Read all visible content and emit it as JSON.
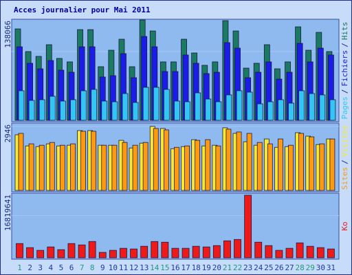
{
  "chart_data": [
    {
      "type": "bar",
      "title": "Acces journalier pour Mai 2011",
      "barmode": "overlay",
      "legend_separator": "/",
      "ylim": [
        0,
        203000
      ],
      "yticks": [
        138066
      ],
      "grid": true,
      "series": [
        {
          "name": "Pages",
          "color": "#33c6f4",
          "values": [
            59400,
            40000,
            41400,
            48300,
            38700,
            41400,
            59400,
            62100,
            38700,
            37300,
            53800,
            35900,
            66300,
            66300,
            62100,
            38700,
            37300,
            55200,
            42800,
            37300,
            51100,
            59400,
            56600,
            33100,
            37300,
            41400,
            34500,
            59400,
            53800,
            51100,
            41400
          ]
        },
        {
          "name": "Fichiers",
          "color": "#1c1ce8",
          "values": [
            147700,
            114600,
            103500,
            120100,
            100800,
            96600,
            147700,
            147700,
            87000,
            89700,
            133900,
            85600,
            168400,
            147700,
            98000,
            98000,
            131200,
            114600,
            93900,
            96600,
            156000,
            145000,
            85600,
            96600,
            117400,
            82800,
            96600,
            154600,
            117400,
            145000,
            131200
          ]
        },
        {
          "name": "Hits",
          "color": "#1b7a62",
          "values": [
            183600,
            138100,
            128400,
            151900,
            124300,
            117400,
            182200,
            182200,
            107700,
            140800,
            162900,
            107700,
            201600,
            179500,
            117400,
            117400,
            162900,
            135300,
            110500,
            117400,
            200200,
            179500,
            104900,
            114600,
            151900,
            103500,
            117400,
            187800,
            140800,
            176700,
            138100
          ]
        }
      ]
    },
    {
      "type": "bar",
      "barmode": "group",
      "legend_separator": "/",
      "ylim": [
        0,
        3100
      ],
      "yticks": [
        2946
      ],
      "grid": true,
      "series": [
        {
          "name": "Sites",
          "color": "#ff9a10",
          "values": [
            2626,
            2145,
            2081,
            2209,
            2081,
            2145,
            2722,
            2722,
            2081,
            2081,
            2209,
            2081,
            2209,
            2850,
            2786,
            1985,
            2049,
            2305,
            2337,
            2049,
            2818,
            2690,
            2626,
            2209,
            2145,
            2369,
            2081,
            2626,
            2466,
            2145,
            2369
          ]
        },
        {
          "name": "Visites",
          "color": "#f8e830",
          "values": [
            2562,
            2049,
            2017,
            2145,
            2049,
            2081,
            2754,
            2754,
            2081,
            2081,
            2305,
            1953,
            2177,
            2946,
            2850,
            1921,
            2017,
            2337,
            2049,
            2081,
            2882,
            2626,
            2241,
            2081,
            2369,
            1985,
            2017,
            2658,
            2498,
            2113,
            2369
          ]
        }
      ]
    },
    {
      "type": "bar",
      "barmode": "overlay",
      "ylim": [
        0,
        25772000
      ],
      "yticks": [
        16819641
      ],
      "grid": true,
      "categories": [
        "1",
        "2",
        "3",
        "4",
        "5",
        "6",
        "7",
        "8",
        "9",
        "10",
        "11",
        "12",
        "13",
        "14",
        "15",
        "16",
        "17",
        "18",
        "19",
        "20",
        "21",
        "22",
        "23",
        "24",
        "25",
        "26",
        "27",
        "28",
        "29",
        "30",
        "31"
      ],
      "highlight_categories": [
        "1",
        "7",
        "8",
        "14",
        "15",
        "21",
        "22",
        "28",
        "29"
      ],
      "highlight_color": "#1f9a7e",
      "category_color": "#1a3aa8",
      "series": [
        {
          "name": "Ko",
          "color": "#ee1a1a",
          "values": [
            5697000,
            4069000,
            2984000,
            4341000,
            3255000,
            5697000,
            5154000,
            6511000,
            2170000,
            2984000,
            3798000,
            3527000,
            4612000,
            6511000,
            6240000,
            3798000,
            3798000,
            4612000,
            4341000,
            4883000,
            6782000,
            7325000,
            24958000,
            6240000,
            4883000,
            2984000,
            3798000,
            5968000,
            4612000,
            4069000,
            3527000
          ]
        }
      ]
    }
  ]
}
